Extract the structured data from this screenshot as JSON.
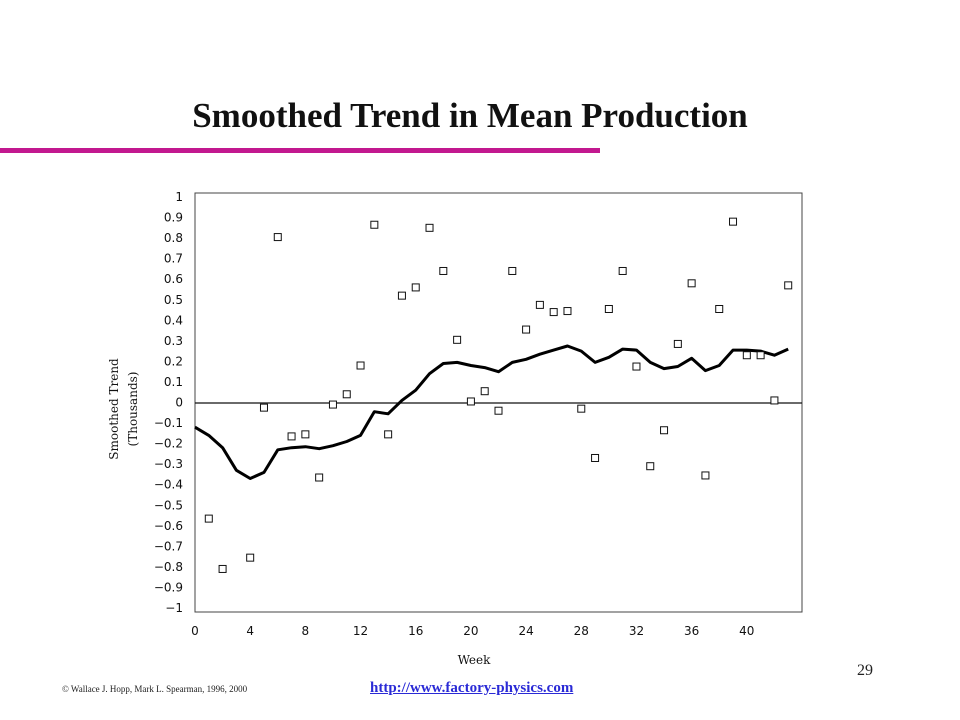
{
  "slide": {
    "title": "Smoothed Trend in Mean Production",
    "page_number": "29",
    "copyright": "© Wallace J. Hopp, Mark L. Spearman, 1996, 2000",
    "link": "http://www.factory-physics.com"
  },
  "colors": {
    "accent": "#c2188f",
    "link": "#2a2ad6",
    "line": "#000000"
  },
  "chart_data": {
    "type": "line",
    "title": "",
    "xlabel": "Week",
    "ylabel_line1": "Smoothed Trend",
    "ylabel_line2": "(Thousands)",
    "xlim": [
      0,
      44
    ],
    "ylim": [
      -1,
      1
    ],
    "grid": false,
    "x_ticks": [
      0,
      4,
      8,
      12,
      16,
      20,
      24,
      28,
      32,
      36,
      40
    ],
    "y_ticks": [
      1,
      0.9,
      0.8,
      0.7,
      0.6,
      0.5,
      0.4,
      0.3,
      0.2,
      0.1,
      0,
      -0.1,
      -0.2,
      -0.3,
      -0.4,
      -0.5,
      -0.6,
      -0.7,
      -0.8,
      -0.9,
      -1
    ],
    "y_tick_labels": [
      "1",
      "0.9",
      "0.8",
      "0.7",
      "0.6",
      "0.5",
      "0.4",
      "0.3",
      "0.2",
      "0.1",
      "0",
      "−0.1",
      "−0.2",
      "−0.3",
      "−0.4",
      "−0.5",
      "−0.6",
      "−0.7",
      "−0.8",
      "−0.9",
      "−1"
    ],
    "series": [
      {
        "type": "line",
        "x": [
          0,
          1,
          2,
          3,
          4,
          5,
          6,
          7,
          8,
          9,
          10,
          11,
          12,
          13,
          14,
          15,
          16,
          17,
          18,
          19,
          20,
          21,
          22,
          23,
          24,
          25,
          26,
          27,
          28,
          29,
          30,
          31,
          32,
          33,
          34,
          35,
          36,
          37,
          38,
          39,
          40,
          41,
          42,
          43
        ],
        "y": [
          -0.12,
          -0.16,
          -0.22,
          -0.33,
          -0.37,
          -0.34,
          -0.23,
          -0.22,
          -0.215,
          -0.225,
          -0.21,
          -0.19,
          -0.16,
          -0.045,
          -0.055,
          0.01,
          0.06,
          0.14,
          0.19,
          0.195,
          0.18,
          0.17,
          0.15,
          0.195,
          0.21,
          0.235,
          0.255,
          0.275,
          0.25,
          0.195,
          0.22,
          0.26,
          0.255,
          0.195,
          0.165,
          0.175,
          0.215,
          0.155,
          0.18,
          0.255,
          0.255,
          0.25,
          0.23,
          0.26
        ]
      },
      {
        "type": "scatter",
        "marker": "square",
        "x": [
          1,
          2,
          4,
          5,
          6,
          7,
          8,
          9,
          10,
          11,
          12,
          13,
          14,
          15,
          16,
          17,
          18,
          19,
          20,
          21,
          22,
          23,
          24,
          25,
          26,
          27,
          28,
          29,
          30,
          31,
          32,
          33,
          34,
          35,
          36,
          37,
          38,
          39,
          40,
          41,
          42,
          43
        ],
        "y": [
          -0.565,
          -0.81,
          -0.755,
          -0.025,
          0.805,
          -0.165,
          -0.155,
          -0.365,
          -0.01,
          0.04,
          0.18,
          0.865,
          -0.155,
          0.52,
          0.56,
          0.85,
          0.64,
          0.305,
          0.005,
          0.055,
          -0.04,
          0.64,
          0.355,
          0.475,
          0.44,
          0.445,
          -0.03,
          -0.27,
          0.455,
          0.64,
          0.175,
          -0.31,
          -0.135,
          0.285,
          0.58,
          -0.355,
          0.455,
          0.88,
          0.23,
          0.23,
          0.01,
          0.57
        ]
      }
    ]
  }
}
